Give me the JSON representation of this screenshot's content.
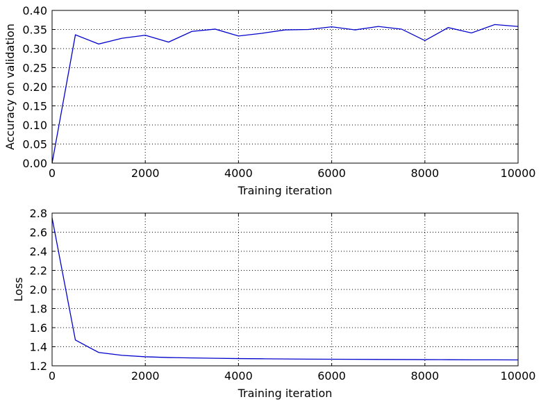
{
  "chart_data": [
    {
      "type": "line",
      "xlabel": "Training iteration",
      "ylabel": "Accuracy on validation",
      "xlim": [
        0,
        10000
      ],
      "ylim": [
        0,
        0.4
      ],
      "grid": true,
      "xticks": [
        0,
        2000,
        4000,
        6000,
        8000,
        10000
      ],
      "xtick_labels": [
        "0",
        "2000",
        "4000",
        "6000",
        "8000",
        "10000"
      ],
      "yticks": [
        0,
        0.05,
        0.1,
        0.15,
        0.2,
        0.25,
        0.3,
        0.35,
        0.4
      ],
      "ytick_labels": [
        "0.00",
        "0.05",
        "0.10",
        "0.15",
        "0.20",
        "0.25",
        "0.30",
        "0.35",
        "0.40"
      ],
      "series": [
        {
          "color": "#0000cc",
          "x": [
            0,
            500,
            1000,
            1500,
            2000,
            2500,
            3000,
            3500,
            4000,
            4500,
            5000,
            5500,
            6000,
            6500,
            7000,
            7500,
            8000,
            8500,
            9000,
            9500,
            10000
          ],
          "y": [
            0.0,
            0.336,
            0.312,
            0.327,
            0.335,
            0.317,
            0.345,
            0.351,
            0.333,
            0.34,
            0.349,
            0.35,
            0.357,
            0.349,
            0.358,
            0.351,
            0.321,
            0.355,
            0.341,
            0.363,
            0.358
          ]
        }
      ]
    },
    {
      "type": "line",
      "xlabel": "Training iteration",
      "ylabel": "Loss",
      "xlim": [
        0,
        10000
      ],
      "ylim": [
        1.2,
        2.8
      ],
      "grid": true,
      "xticks": [
        0,
        2000,
        4000,
        6000,
        8000,
        10000
      ],
      "xtick_labels": [
        "0",
        "2000",
        "4000",
        "6000",
        "8000",
        "10000"
      ],
      "yticks": [
        1.2,
        1.4,
        1.6,
        1.8,
        2.0,
        2.2,
        2.4,
        2.6,
        2.8
      ],
      "ytick_labels": [
        "1.2",
        "1.4",
        "1.6",
        "1.8",
        "2.0",
        "2.2",
        "2.4",
        "2.6",
        "2.8"
      ],
      "series": [
        {
          "color": "#0000cc",
          "x": [
            0,
            500,
            1000,
            1500,
            2000,
            2500,
            3000,
            3500,
            4000,
            4500,
            5000,
            5500,
            6000,
            6500,
            7000,
            7500,
            8000,
            8500,
            9000,
            9500,
            10000
          ],
          "y": [
            2.75,
            1.47,
            1.34,
            1.31,
            1.295,
            1.287,
            1.283,
            1.279,
            1.276,
            1.274,
            1.272,
            1.27,
            1.269,
            1.268,
            1.267,
            1.266,
            1.265,
            1.264,
            1.263,
            1.263,
            1.262
          ]
        }
      ]
    }
  ]
}
